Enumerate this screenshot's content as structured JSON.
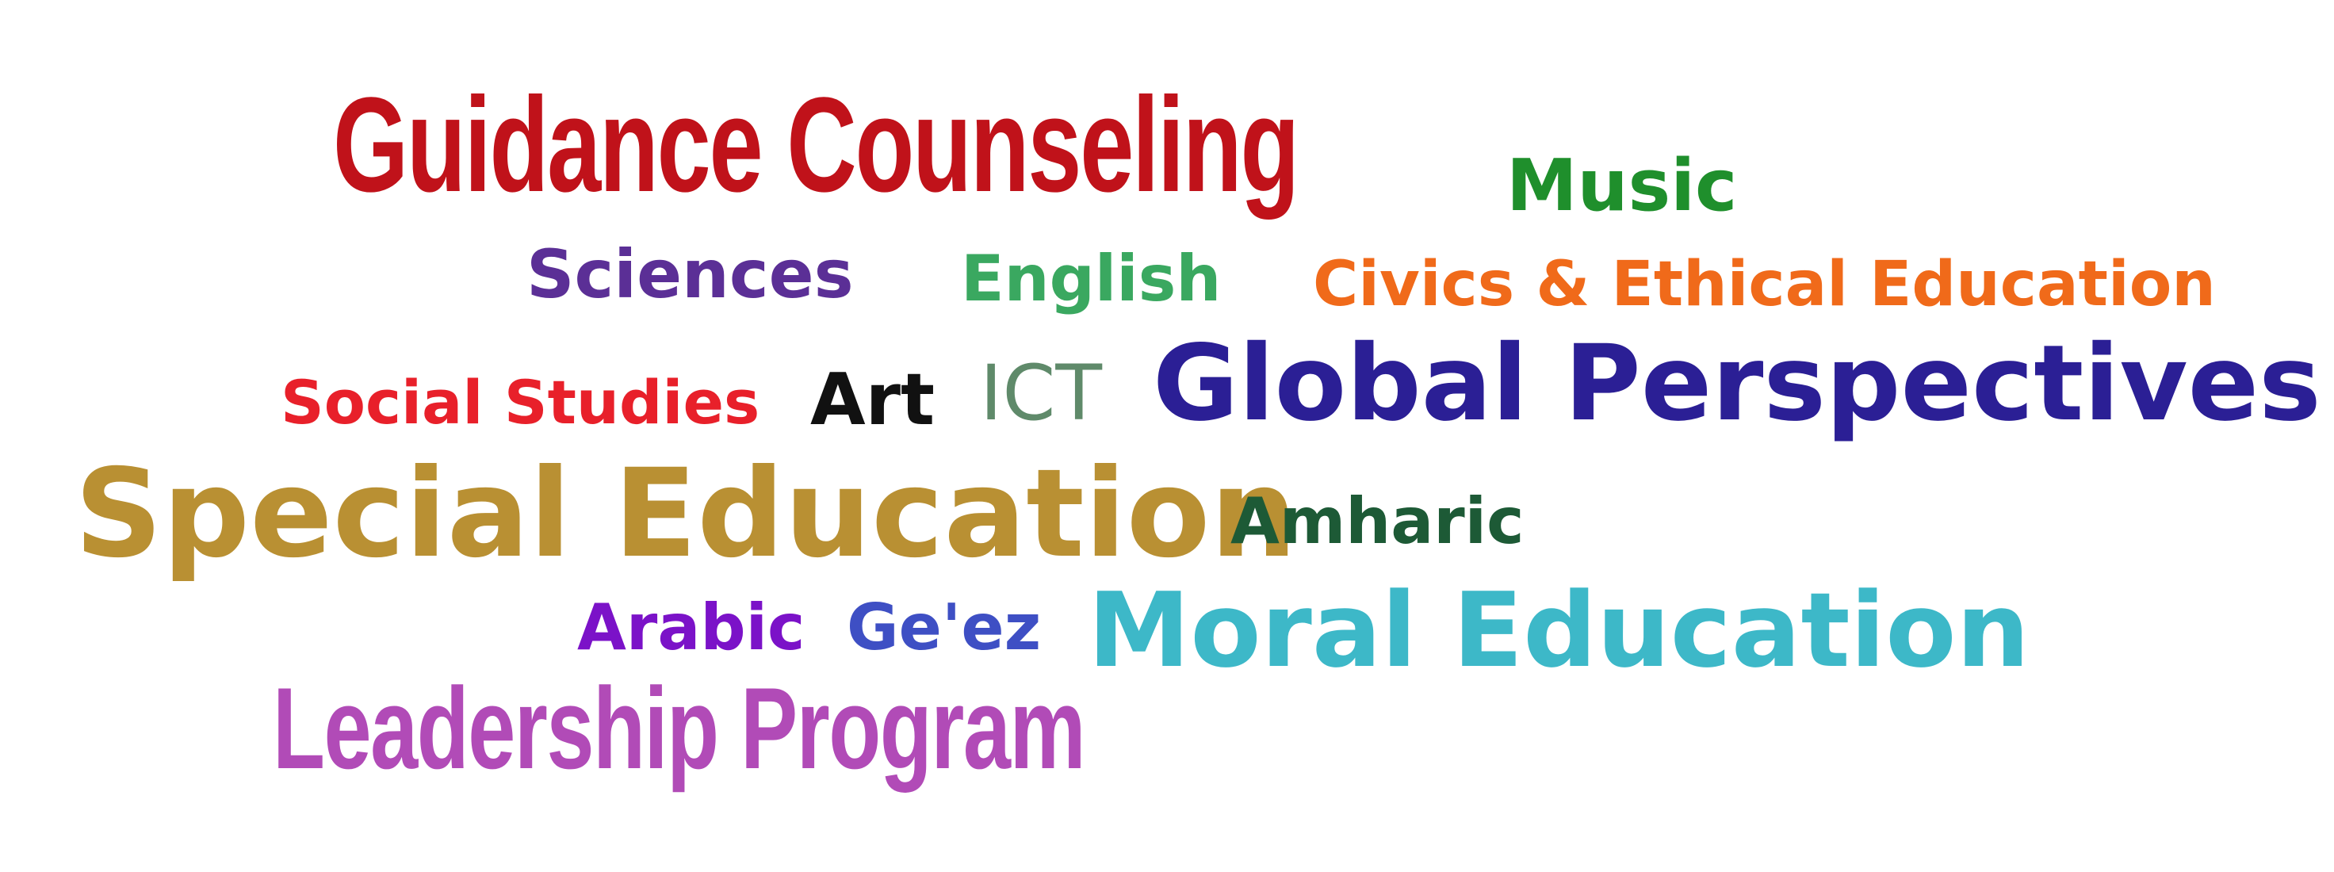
{
  "words": {
    "guidance": {
      "text": "Guidance Counseling",
      "color": "#c0121a"
    },
    "music": {
      "text": "Music",
      "color": "#1f8f2c"
    },
    "sciences": {
      "text": "Sciences",
      "color": "#5b2f96"
    },
    "english": {
      "text": "English",
      "color": "#3aa860"
    },
    "civics": {
      "text": "Civics & Ethical Education",
      "color": "#f06a1a"
    },
    "social": {
      "text": "Social Studies",
      "color": "#e8202a"
    },
    "art": {
      "text": "Art",
      "color": "#111111"
    },
    "ict": {
      "text": "ICT",
      "color": "#5f8a6a"
    },
    "global": {
      "text": "Global Perspectives",
      "color": "#2b1f95"
    },
    "special": {
      "text": "Special Education",
      "color": "#b99033"
    },
    "amharic": {
      "text": "Amharic",
      "color": "#1d5a36"
    },
    "arabic": {
      "text": "Arabic",
      "color": "#7b12c8"
    },
    "geez": {
      "text": "Ge'ez",
      "color": "#3e4fc4"
    },
    "moral": {
      "text": "Moral Education",
      "color": "#3db8c8"
    },
    "leadership": {
      "text": "Leadership Program",
      "color": "#b14bb7"
    }
  }
}
